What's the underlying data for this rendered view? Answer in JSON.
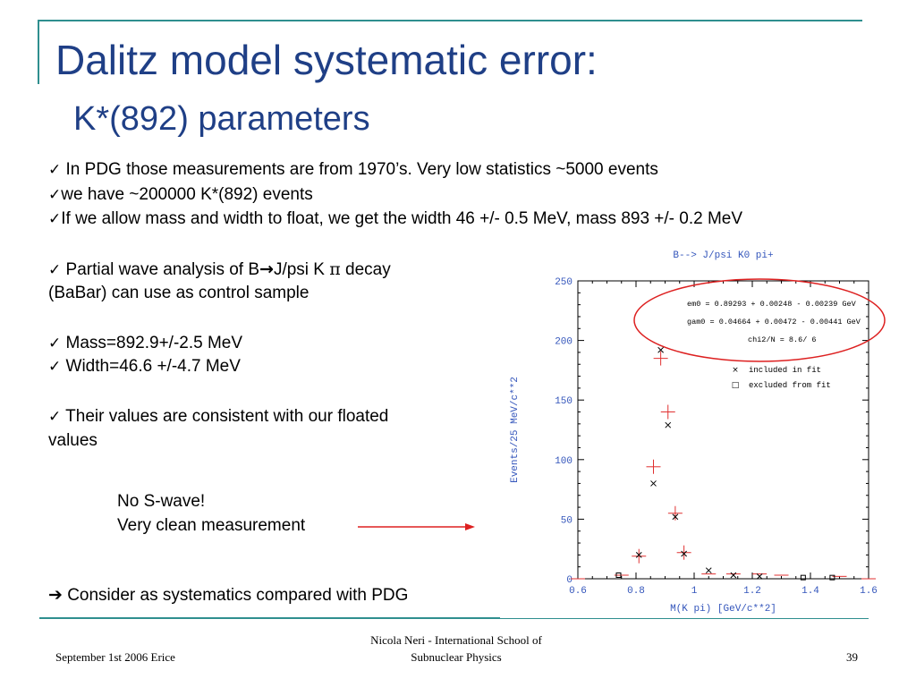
{
  "slide": {
    "title": "Dalitz model systematic error:",
    "subtitle": "K*(892) parameters",
    "bullets_top": [
      {
        "check": "✓",
        "text": " In PDG those measurements are from 1970’s. Very low statistics ~5000 events"
      },
      {
        "check": "✓",
        "text": "we have ~200000 K*(892) events"
      },
      {
        "check": "✓",
        "text": "If we allow mass and width to float, we get the width 46 +/- 0.5 MeV, mass 893 +/- 0.2 MeV"
      }
    ],
    "partial_wave": {
      "check": "✓",
      "prefix": " Partial wave analysis  of B",
      "arrow": "→",
      "mid": "J/psi K ",
      "pi": "π",
      "suffix": " decay",
      "line2": "(BaBar) can use as control sample"
    },
    "mass_line": {
      "check": "✓",
      "text": " Mass=892.9+/-2.5 MeV"
    },
    "width_line": {
      "check": "✓",
      "text": " Width=46.6 +/-4.7 MeV"
    },
    "consistent": {
      "check": "✓",
      "text": " Their values are consistent with our floated",
      "line2": "values"
    },
    "note": {
      "line1": "No S-wave!",
      "line2": "Very clean measurement"
    },
    "conclusion": {
      "arrow": "➔",
      "text": " Consider as systematics compared with PDG"
    },
    "footer": {
      "left": "September 1st 2006 Erice",
      "center_line1": "Nicola Neri - International School of",
      "center_line2": "Subnuclear Physics",
      "page": "39"
    },
    "colors": {
      "title": "#1f3f86",
      "accent": "#2f8f8f",
      "plot_text": "#3355bb",
      "fit": "#e03030",
      "highlight": "#dd2020"
    }
  },
  "chart_data": {
    "type": "scatter",
    "title": "B--> J/psi K0 pi+",
    "xlabel": "M(K pi) [GeV/c**2]",
    "ylabel": "Events/25 MeV/c**2",
    "xlim": [
      0.6,
      1.6
    ],
    "ylim": [
      0,
      250
    ],
    "xticks": [
      "0.6",
      "0.8",
      "1",
      "1.2",
      "1.4",
      "1.6"
    ],
    "yticks": [
      "0",
      "50",
      "100",
      "150",
      "200",
      "250"
    ],
    "fit_params": [
      "em0  = 0.89293 + 0.00248 - 0.00239 GeV",
      "gam0 = 0.04664 + 0.00472 - 0.00441 GeV",
      "chi2/N =    8.6/  6"
    ],
    "legend": [
      {
        "marker": "×",
        "label": "included in fit"
      },
      {
        "marker": "□",
        "label": "excluded from fit"
      }
    ],
    "series": [
      {
        "name": "included in fit",
        "marker": "x",
        "points": [
          [
            0.81,
            20
          ],
          [
            0.86,
            80
          ],
          [
            0.885,
            192
          ],
          [
            0.91,
            129
          ],
          [
            0.935,
            52
          ],
          [
            0.965,
            21
          ],
          [
            1.05,
            7
          ],
          [
            1.135,
            3
          ],
          [
            1.225,
            2
          ]
        ]
      },
      {
        "name": "excluded from fit",
        "marker": "square",
        "points": [
          [
            0.74,
            3
          ],
          [
            1.375,
            1
          ],
          [
            1.475,
            1
          ]
        ]
      }
    ],
    "fit_curve": [
      [
        0.6,
        0
      ],
      [
        0.75,
        3
      ],
      [
        0.81,
        19
      ],
      [
        0.86,
        94
      ],
      [
        0.885,
        185
      ],
      [
        0.91,
        140
      ],
      [
        0.935,
        55
      ],
      [
        0.965,
        22
      ],
      [
        1.05,
        4
      ],
      [
        1.135,
        4
      ],
      [
        1.225,
        4
      ],
      [
        1.3,
        3
      ],
      [
        1.5,
        2
      ],
      [
        1.6,
        0
      ]
    ]
  }
}
